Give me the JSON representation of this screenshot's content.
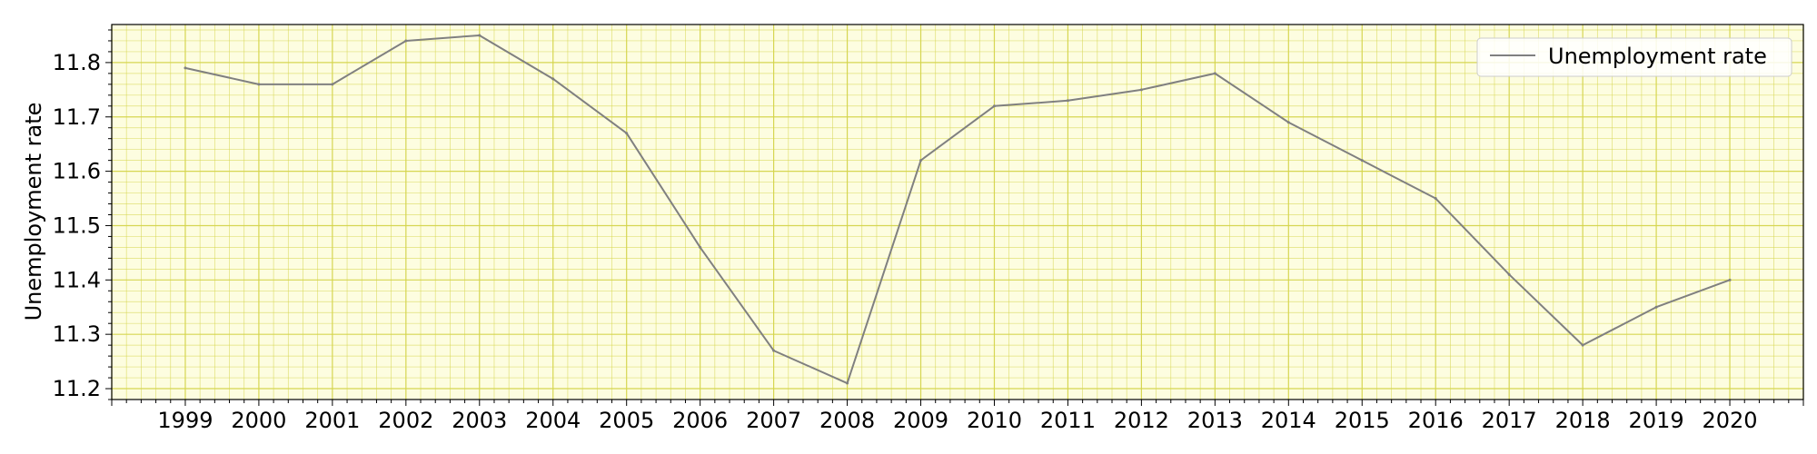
{
  "chart_data": {
    "type": "line",
    "title": "",
    "xlabel": "",
    "ylabel": "Unemployment rate",
    "x": [
      "1999",
      "2000",
      "2001",
      "2002",
      "2003",
      "2004",
      "2005",
      "2006",
      "2007",
      "2008",
      "2009",
      "2010",
      "2011",
      "2012",
      "2013",
      "2014",
      "2015",
      "2016",
      "2017",
      "2018",
      "2019",
      "2020"
    ],
    "series": [
      {
        "name": "Unemployment rate",
        "color": "#808080",
        "values": [
          11.79,
          11.76,
          11.76,
          11.84,
          11.85,
          11.77,
          11.67,
          11.46,
          11.27,
          11.21,
          11.62,
          11.72,
          11.73,
          11.75,
          11.78,
          11.69,
          11.62,
          11.55,
          11.41,
          11.28,
          11.35,
          11.4
        ]
      }
    ],
    "yticks": [
      "11.2",
      "11.3",
      "11.4",
      "11.5",
      "11.6",
      "11.7",
      "11.8"
    ],
    "ylim": [
      11.18,
      11.87
    ],
    "xlim": [
      1998,
      2021
    ],
    "grid": true,
    "grid_color": "#d4d44a",
    "background": "#fdfde0",
    "legend_position": "top-right"
  }
}
